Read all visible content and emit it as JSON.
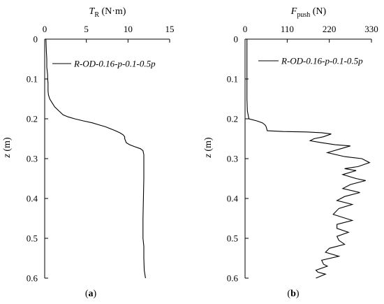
{
  "chart_data": [
    {
      "type": "line",
      "panel_label": "a",
      "xlabel": {
        "symbol": "T",
        "subscript": "R",
        "unit": "(N·m)"
      },
      "ylabel": {
        "symbol": "z",
        "unit": "(m)"
      },
      "xlim": [
        0,
        15
      ],
      "ylim": [
        0,
        0.6
      ],
      "y_inverted": true,
      "x_axis_position": "top",
      "xticks": [
        "0",
        "5",
        "10",
        "15"
      ],
      "yticks": [
        "0",
        "0.1",
        "0.2",
        "0.3",
        "0.4",
        "0.5",
        "0.6"
      ],
      "grid": false,
      "legend_position": "top-right",
      "series": [
        {
          "name": "R-OD-0.16-p-0.1-0.5p",
          "color": "#000000",
          "points": [
            [
              0.15,
              0.0
            ],
            [
              0.2,
              0.03
            ],
            [
              0.25,
              0.05
            ],
            [
              0.25,
              0.07
            ],
            [
              0.35,
              0.09
            ],
            [
              0.35,
              0.1
            ],
            [
              0.4,
              0.11
            ],
            [
              0.4,
              0.13
            ],
            [
              0.45,
              0.14
            ],
            [
              0.6,
              0.15
            ],
            [
              0.9,
              0.16
            ],
            [
              1.2,
              0.17
            ],
            [
              1.7,
              0.18
            ],
            [
              2.2,
              0.19
            ],
            [
              2.8,
              0.195
            ],
            [
              3.6,
              0.2
            ],
            [
              4.6,
              0.205
            ],
            [
              5.7,
              0.21
            ],
            [
              6.5,
              0.215
            ],
            [
              7.3,
              0.22
            ],
            [
              7.9,
              0.225
            ],
            [
              8.5,
              0.23
            ],
            [
              9.0,
              0.235
            ],
            [
              9.4,
              0.24
            ],
            [
              9.6,
              0.245
            ],
            [
              9.6,
              0.25
            ],
            [
              9.8,
              0.26
            ],
            [
              10.2,
              0.265
            ],
            [
              10.8,
              0.27
            ],
            [
              11.5,
              0.275
            ],
            [
              11.8,
              0.28
            ],
            [
              11.9,
              0.29
            ],
            [
              11.9,
              0.35
            ],
            [
              11.85,
              0.4
            ],
            [
              11.8,
              0.45
            ],
            [
              11.8,
              0.5
            ],
            [
              11.9,
              0.52
            ],
            [
              11.9,
              0.55
            ],
            [
              11.95,
              0.58
            ],
            [
              12.1,
              0.6
            ]
          ]
        }
      ]
    },
    {
      "type": "line",
      "panel_label": "b",
      "xlabel": {
        "symbol": "F",
        "subscript": "push",
        "unit": "(N)"
      },
      "ylabel": {
        "symbol": "z",
        "unit": "(m)"
      },
      "xlim": [
        0,
        330
      ],
      "ylim": [
        0,
        0.6
      ],
      "y_inverted": true,
      "x_axis_position": "top",
      "xticks": [
        "0",
        "110",
        "220",
        "330"
      ],
      "yticks": [
        "0",
        "0.1",
        "0.2",
        "0.3",
        "0.4",
        "0.5",
        "0.6"
      ],
      "grid": false,
      "legend_position": "top-right",
      "series": [
        {
          "name": "R-OD-0.16-p-0.1-0.5p",
          "color": "#000000",
          "points": [
            [
              5,
              0.0
            ],
            [
              5,
              0.05
            ],
            [
              5,
              0.1
            ],
            [
              5,
              0.15
            ],
            [
              6,
              0.18
            ],
            [
              10,
              0.2
            ],
            [
              30,
              0.205
            ],
            [
              45,
              0.21
            ],
            [
              52,
              0.215
            ],
            [
              55,
              0.22
            ],
            [
              58,
              0.23
            ],
            [
              100,
              0.232
            ],
            [
              160,
              0.233
            ],
            [
              200,
              0.235
            ],
            [
              225,
              0.238
            ],
            [
              205,
              0.245
            ],
            [
              180,
              0.25
            ],
            [
              170,
              0.255
            ],
            [
              200,
              0.26
            ],
            [
              235,
              0.265
            ],
            [
              275,
              0.268
            ],
            [
              250,
              0.275
            ],
            [
              215,
              0.285
            ],
            [
              260,
              0.295
            ],
            [
              305,
              0.3
            ],
            [
              325,
              0.31
            ],
            [
              295,
              0.32
            ],
            [
              260,
              0.325
            ],
            [
              290,
              0.33
            ],
            [
              255,
              0.34
            ],
            [
              290,
              0.35
            ],
            [
              315,
              0.355
            ],
            [
              275,
              0.365
            ],
            [
              255,
              0.375
            ],
            [
              300,
              0.385
            ],
            [
              260,
              0.395
            ],
            [
              240,
              0.405
            ],
            [
              280,
              0.415
            ],
            [
              245,
              0.425
            ],
            [
              230,
              0.44
            ],
            [
              280,
              0.455
            ],
            [
              240,
              0.465
            ],
            [
              240,
              0.475
            ],
            [
              270,
              0.485
            ],
            [
              240,
              0.495
            ],
            [
              245,
              0.505
            ],
            [
              260,
              0.515
            ],
            [
              220,
              0.525
            ],
            [
              210,
              0.535
            ],
            [
              245,
              0.545
            ],
            [
              200,
              0.555
            ],
            [
              205,
              0.565
            ],
            [
              215,
              0.57
            ],
            [
              185,
              0.58
            ],
            [
              190,
              0.585
            ],
            [
              210,
              0.59
            ],
            [
              185,
              0.6
            ]
          ]
        }
      ]
    }
  ]
}
